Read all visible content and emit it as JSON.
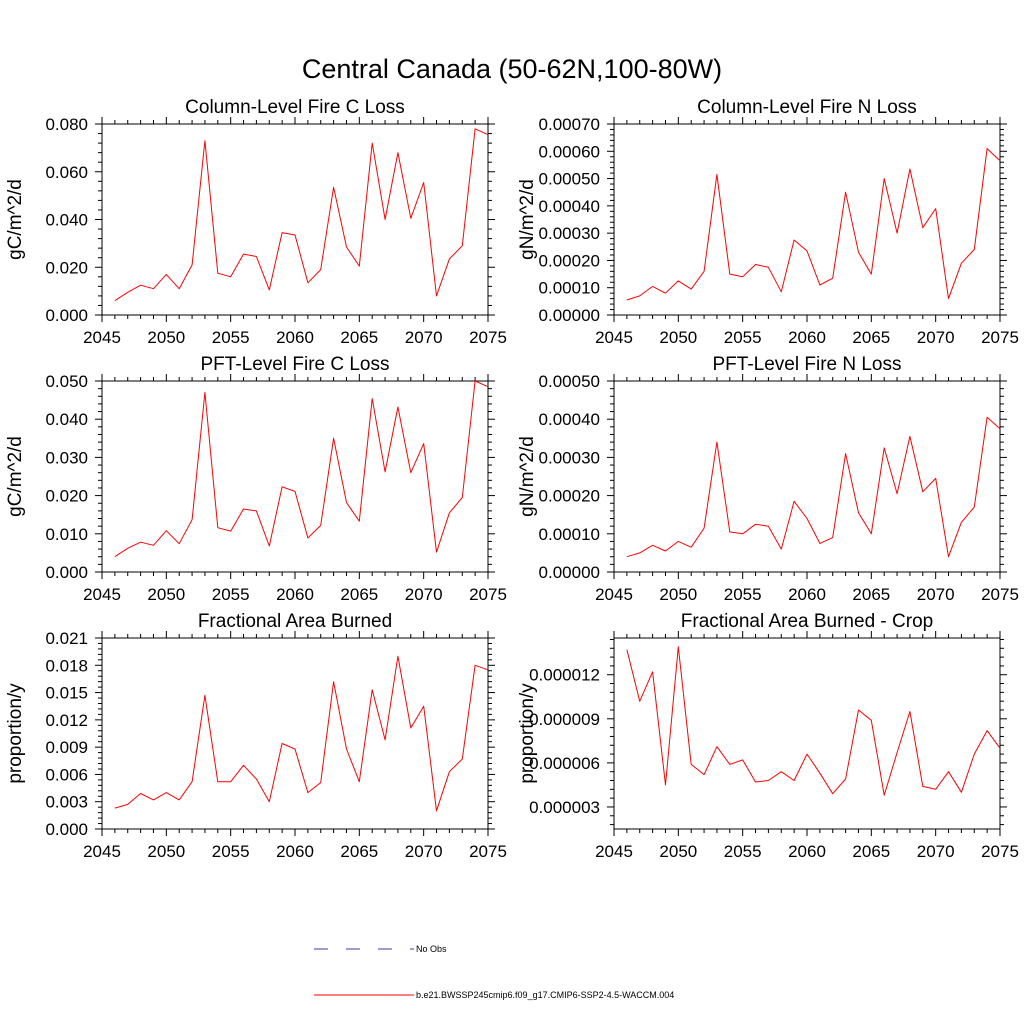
{
  "figure": {
    "title": "Central Canada (50-62N,100-80W)"
  },
  "legend": {
    "entries": [
      {
        "label": "No Obs",
        "style": "dashed",
        "color": "#3a3aa8"
      },
      {
        "label": "b.e21.BWSSP245cmip6.f09_g17.CMIP6-SSP2-4.5-WACCM.004",
        "style": "solid",
        "color": "#ff0000"
      }
    ]
  },
  "chart_data": [
    {
      "type": "line",
      "title": "Column-Level Fire C Loss",
      "ylabel": "gC/m^2/d",
      "xlabel": "",
      "xlim": [
        2045,
        2075
      ],
      "ylim": [
        0,
        0.08
      ],
      "xticks": [
        2045,
        2050,
        2055,
        2060,
        2065,
        2070,
        2075
      ],
      "xtick_labels": [
        "2045",
        "2050",
        "2055",
        "2060",
        "2065",
        "2070",
        "2075"
      ],
      "yticks": [
        0,
        0.02,
        0.04,
        0.06,
        0.08
      ],
      "ytick_labels": [
        "0.000",
        "0.020",
        "0.040",
        "0.060",
        "0.080"
      ],
      "series": [
        {
          "name": "b.e21.BWSSP245cmip6.f09_g17.CMIP6-SSP2-4.5-WACCM.004",
          "color": "#ff0000",
          "x": [
            2046,
            2047,
            2048,
            2049,
            2050,
            2051,
            2052,
            2053,
            2054,
            2055,
            2056,
            2057,
            2058,
            2059,
            2060,
            2061,
            2062,
            2063,
            2064,
            2065,
            2066,
            2067,
            2068,
            2069,
            2070,
            2071,
            2072,
            2073,
            2074,
            2075
          ],
          "y": [
            0.006,
            0.0095,
            0.0125,
            0.011,
            0.017,
            0.011,
            0.021,
            0.073,
            0.0175,
            0.016,
            0.0255,
            0.0245,
            0.0105,
            0.0345,
            0.0335,
            0.0135,
            0.019,
            0.0535,
            0.0285,
            0.0205,
            0.072,
            0.04,
            0.068,
            0.0405,
            0.0555,
            0.008,
            0.0235,
            0.029,
            0.078,
            0.0755
          ]
        }
      ]
    },
    {
      "type": "line",
      "title": "Column-Level Fire N Loss",
      "ylabel": "gN/m^2/d",
      "xlabel": "",
      "xlim": [
        2045,
        2075
      ],
      "ylim": [
        0,
        0.0007
      ],
      "xticks": [
        2045,
        2050,
        2055,
        2060,
        2065,
        2070,
        2075
      ],
      "xtick_labels": [
        "2045",
        "2050",
        "2055",
        "2060",
        "2065",
        "2070",
        "2075"
      ],
      "yticks": [
        0,
        0.0001,
        0.0002,
        0.0003,
        0.0004,
        0.0005,
        0.0006,
        0.0007
      ],
      "ytick_labels": [
        "0.00000",
        "0.00010",
        "0.00020",
        "0.00030",
        "0.00040",
        "0.00050",
        "0.00060",
        "0.00070"
      ],
      "series": [
        {
          "name": "b.e21.BWSSP245cmip6.f09_g17.CMIP6-SSP2-4.5-WACCM.004",
          "color": "#ff0000",
          "x": [
            2046,
            2047,
            2048,
            2049,
            2050,
            2051,
            2052,
            2053,
            2054,
            2055,
            2056,
            2057,
            2058,
            2059,
            2060,
            2061,
            2062,
            2063,
            2064,
            2065,
            2066,
            2067,
            2068,
            2069,
            2070,
            2071,
            2072,
            2073,
            2074,
            2075
          ],
          "y": [
            5.5e-05,
            7e-05,
            0.000105,
            8e-05,
            0.000125,
            9.5e-05,
            0.00016,
            0.000515,
            0.00015,
            0.00014,
            0.000185,
            0.000175,
            8.5e-05,
            0.000275,
            0.000235,
            0.00011,
            0.000135,
            0.00045,
            0.00023,
            0.00015,
            0.0005,
            0.0003,
            0.000535,
            0.00032,
            0.00039,
            6e-05,
            0.00019,
            0.00024,
            0.00061,
            0.000565
          ]
        }
      ]
    },
    {
      "type": "line",
      "title": "PFT-Level Fire C Loss",
      "ylabel": "gC/m^2/d",
      "xlabel": "",
      "xlim": [
        2045,
        2075
      ],
      "ylim": [
        0,
        0.05
      ],
      "xticks": [
        2045,
        2050,
        2055,
        2060,
        2065,
        2070,
        2075
      ],
      "xtick_labels": [
        "2045",
        "2050",
        "2055",
        "2060",
        "2065",
        "2070",
        "2075"
      ],
      "yticks": [
        0,
        0.01,
        0.02,
        0.03,
        0.04,
        0.05
      ],
      "ytick_labels": [
        "0.000",
        "0.010",
        "0.020",
        "0.030",
        "0.040",
        "0.050"
      ],
      "series": [
        {
          "name": "b.e21.BWSSP245cmip6.f09_g17.CMIP6-SSP2-4.5-WACCM.004",
          "color": "#ff0000",
          "x": [
            2046,
            2047,
            2048,
            2049,
            2050,
            2051,
            2052,
            2053,
            2054,
            2055,
            2056,
            2057,
            2058,
            2059,
            2060,
            2061,
            2062,
            2063,
            2064,
            2065,
            2066,
            2067,
            2068,
            2069,
            2070,
            2071,
            2072,
            2073,
            2074,
            2075
          ],
          "y": [
            0.004,
            0.0062,
            0.0078,
            0.007,
            0.0108,
            0.0074,
            0.0137,
            0.047,
            0.0116,
            0.0107,
            0.0165,
            0.016,
            0.0068,
            0.0223,
            0.0211,
            0.0089,
            0.0122,
            0.035,
            0.0182,
            0.0133,
            0.0454,
            0.0262,
            0.0432,
            0.026,
            0.0336,
            0.0052,
            0.0155,
            0.0195,
            0.05,
            0.0485
          ]
        }
      ]
    },
    {
      "type": "line",
      "title": "PFT-Level Fire N Loss",
      "ylabel": "gN/m^2/d",
      "xlabel": "",
      "xlim": [
        2045,
        2075
      ],
      "ylim": [
        0,
        0.0005
      ],
      "xticks": [
        2045,
        2050,
        2055,
        2060,
        2065,
        2070,
        2075
      ],
      "xtick_labels": [
        "2045",
        "2050",
        "2055",
        "2060",
        "2065",
        "2070",
        "2075"
      ],
      "yticks": [
        0,
        0.0001,
        0.0002,
        0.0003,
        0.0004,
        0.0005
      ],
      "ytick_labels": [
        "0.00000",
        "0.00010",
        "0.00020",
        "0.00030",
        "0.00040",
        "0.00050"
      ],
      "series": [
        {
          "name": "b.e21.BWSSP245cmip6.f09_g17.CMIP6-SSP2-4.5-WACCM.004",
          "color": "#ff0000",
          "x": [
            2046,
            2047,
            2048,
            2049,
            2050,
            2051,
            2052,
            2053,
            2054,
            2055,
            2056,
            2057,
            2058,
            2059,
            2060,
            2061,
            2062,
            2063,
            2064,
            2065,
            2066,
            2067,
            2068,
            2069,
            2070,
            2071,
            2072,
            2073,
            2074,
            2075
          ],
          "y": [
            4e-05,
            5e-05,
            7e-05,
            5.5e-05,
            8e-05,
            6.5e-05,
            0.000115,
            0.00034,
            0.000105,
            0.0001,
            0.000125,
            0.00012,
            6e-05,
            0.000185,
            0.00014,
            7.5e-05,
            9e-05,
            0.00031,
            0.000155,
            0.0001,
            0.000325,
            0.000205,
            0.000355,
            0.00021,
            0.000245,
            4e-05,
            0.00013,
            0.00017,
            0.000405,
            0.000375
          ]
        }
      ]
    },
    {
      "type": "line",
      "title": "Fractional Area Burned",
      "ylabel": "proportion/y",
      "xlabel": "",
      "xlim": [
        2045,
        2075
      ],
      "ylim": [
        0,
        0.021
      ],
      "xticks": [
        2045,
        2050,
        2055,
        2060,
        2065,
        2070,
        2075
      ],
      "xtick_labels": [
        "2045",
        "2050",
        "2055",
        "2060",
        "2065",
        "2070",
        "2075"
      ],
      "yticks": [
        0,
        0.003,
        0.006,
        0.009,
        0.012,
        0.015,
        0.018,
        0.021
      ],
      "ytick_labels": [
        "0.000",
        "0.003",
        "0.006",
        "0.009",
        "0.012",
        "0.015",
        "0.018",
        "0.021"
      ],
      "series": [
        {
          "name": "b.e21.BWSSP245cmip6.f09_g17.CMIP6-SSP2-4.5-WACCM.004",
          "color": "#ff0000",
          "x": [
            2046,
            2047,
            2048,
            2049,
            2050,
            2051,
            2052,
            2053,
            2054,
            2055,
            2056,
            2057,
            2058,
            2059,
            2060,
            2061,
            2062,
            2063,
            2064,
            2065,
            2066,
            2067,
            2068,
            2069,
            2070,
            2071,
            2072,
            2073,
            2074,
            2075
          ],
          "y": [
            0.0023,
            0.0027,
            0.0039,
            0.0032,
            0.004,
            0.0032,
            0.0052,
            0.0147,
            0.0052,
            0.0052,
            0.007,
            0.0055,
            0.003,
            0.0094,
            0.0088,
            0.004,
            0.0051,
            0.0162,
            0.0088,
            0.0052,
            0.0153,
            0.0098,
            0.019,
            0.0111,
            0.0135,
            0.002,
            0.0063,
            0.0077,
            0.018,
            0.0175
          ]
        }
      ]
    },
    {
      "type": "line",
      "title": "Fractional Area Burned - Crop",
      "ylabel": "proportion/y",
      "xlabel": "",
      "xlim": [
        2045,
        2075
      ],
      "ylim": [
        1.5e-06,
        1.45e-05
      ],
      "xticks": [
        2045,
        2050,
        2055,
        2060,
        2065,
        2070,
        2075
      ],
      "xtick_labels": [
        "2045",
        "2050",
        "2055",
        "2060",
        "2065",
        "2070",
        "2075"
      ],
      "yticks": [
        3e-06,
        6e-06,
        9e-06,
        1.2e-05
      ],
      "ytick_labels": [
        "0.000003",
        "0.000006",
        "0.000009",
        "0.000012"
      ],
      "series": [
        {
          "name": "b.e21.BWSSP245cmip6.f09_g17.CMIP6-SSP2-4.5-WACCM.004",
          "color": "#ff0000",
          "x": [
            2046,
            2047,
            2048,
            2049,
            2050,
            2051,
            2052,
            2053,
            2054,
            2055,
            2056,
            2057,
            2058,
            2059,
            2060,
            2061,
            2062,
            2063,
            2064,
            2065,
            2066,
            2067,
            2068,
            2069,
            2070,
            2071,
            2072,
            2073,
            2074,
            2075
          ],
          "y": [
            1.37e-05,
            1.02e-05,
            1.22e-05,
            4.5e-06,
            1.39e-05,
            5.9e-06,
            5.2e-06,
            7.1e-06,
            5.9e-06,
            6.2e-06,
            4.7e-06,
            4.8e-06,
            5.4e-06,
            4.8e-06,
            6.6e-06,
            5.3e-06,
            3.9e-06,
            4.9e-06,
            9.6e-06,
            8.9e-06,
            3.8e-06,
            6.7e-06,
            9.5e-06,
            4.4e-06,
            4.2e-06,
            5.4e-06,
            4e-06,
            6.6e-06,
            8.2e-06,
            7e-06
          ]
        }
      ]
    }
  ]
}
